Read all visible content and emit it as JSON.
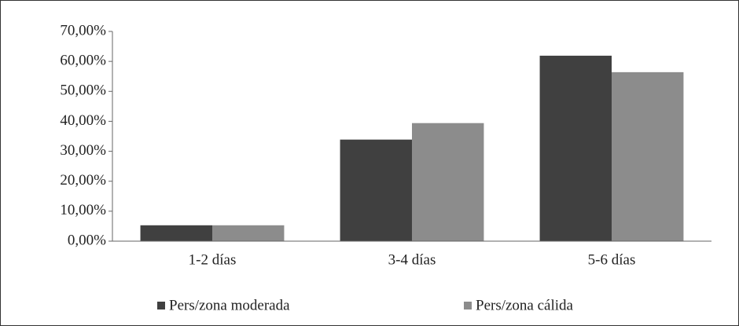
{
  "chart_data": {
    "type": "bar",
    "categories": [
      "1-2 días",
      "3-4 días",
      "5-6 días"
    ],
    "series": [
      {
        "name": "Pers/zona moderada",
        "color": "#404040",
        "values": [
          5.3,
          33.9,
          61.9
        ]
      },
      {
        "name": "Pers/zona cálida",
        "color": "#8c8c8c",
        "values": [
          5.3,
          39.4,
          56.4
        ]
      }
    ],
    "ylim": [
      0,
      70
    ],
    "yticks": [
      {
        "value": 0,
        "label": "0,00%"
      },
      {
        "value": 10,
        "label": "10,00%"
      },
      {
        "value": 20,
        "label": "20,00%"
      },
      {
        "value": 30,
        "label": "30,00%"
      },
      {
        "value": 40,
        "label": "40,00%"
      },
      {
        "value": 50,
        "label": "50,00%"
      },
      {
        "value": 60,
        "label": "60,00%"
      },
      {
        "value": 70,
        "label": "70,00%"
      }
    ],
    "grid": false,
    "legend": "bottom"
  }
}
